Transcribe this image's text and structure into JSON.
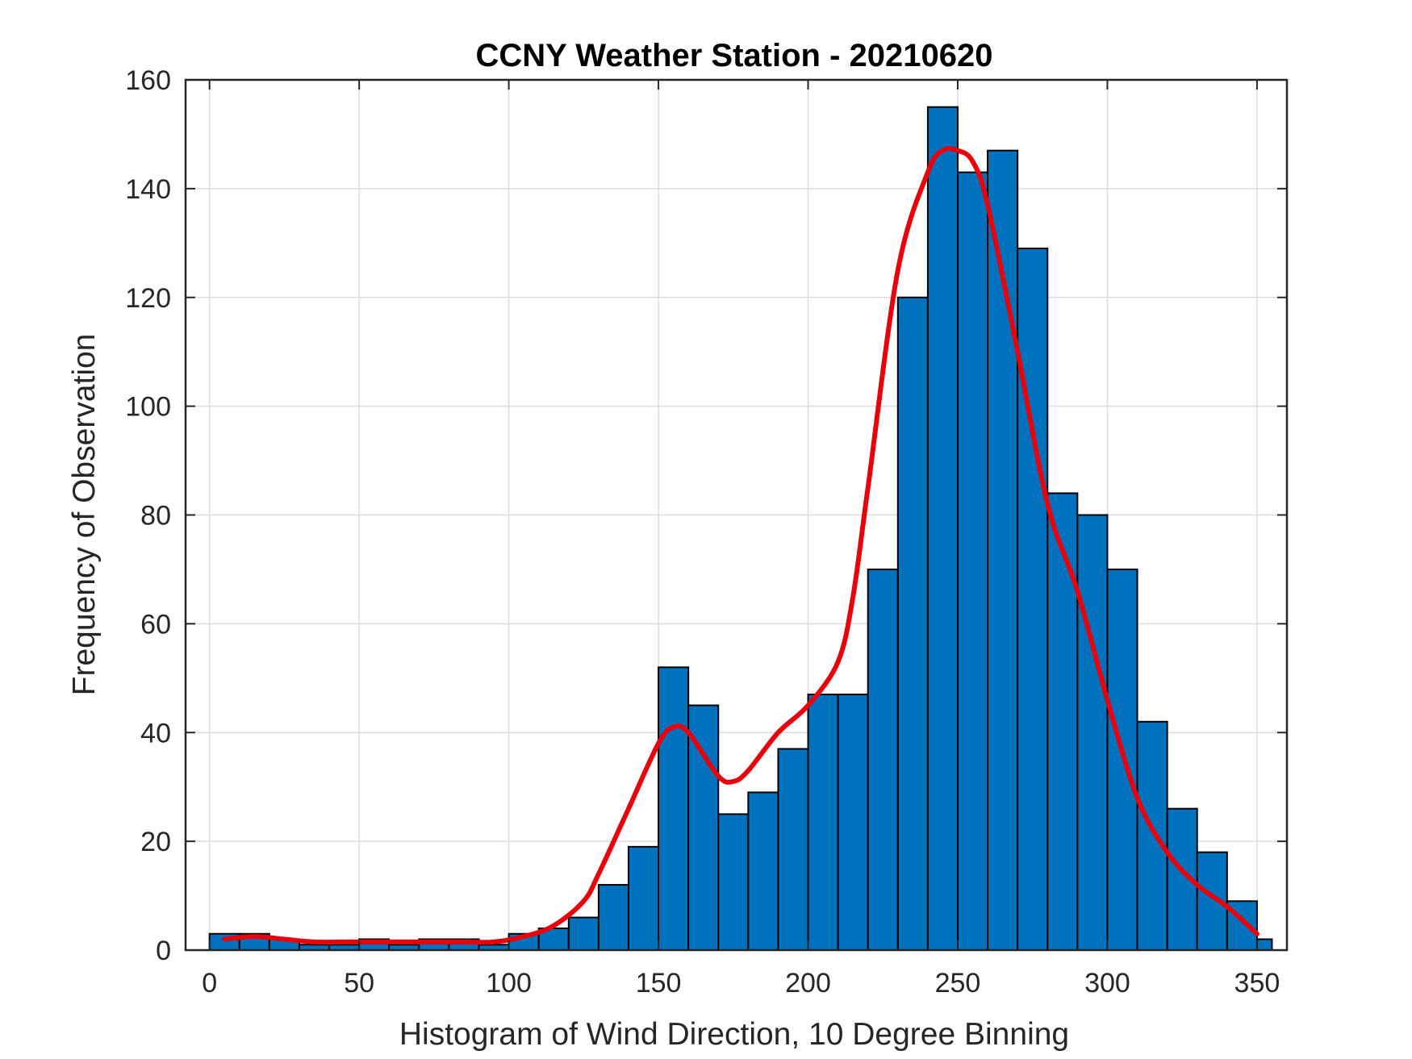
{
  "chart_data": {
    "type": "bar",
    "title": "CCNY Weather Station - 20210620",
    "xlabel": "Histogram of Wind Direction, 10 Degree Binning",
    "ylabel": "Frequency of Observation",
    "xlim": [
      -8,
      360
    ],
    "ylim": [
      0,
      160
    ],
    "xticks": [
      0,
      50,
      100,
      150,
      200,
      250,
      300,
      350
    ],
    "yticks": [
      0,
      20,
      40,
      60,
      80,
      100,
      120,
      140,
      160
    ],
    "grid": true,
    "bin_width": 10,
    "bin_edges": [
      0,
      10,
      20,
      30,
      40,
      50,
      60,
      70,
      80,
      90,
      100,
      110,
      120,
      130,
      140,
      150,
      160,
      170,
      180,
      190,
      200,
      210,
      220,
      230,
      240,
      250,
      260,
      270,
      280,
      290,
      300,
      310,
      320,
      330,
      340,
      350,
      355
    ],
    "values": [
      3,
      3,
      2,
      1,
      1,
      2,
      1,
      2,
      2,
      1,
      3,
      4,
      6,
      12,
      19,
      52,
      45,
      25,
      29,
      37,
      47,
      47,
      70,
      120,
      155,
      143,
      147,
      129,
      84,
      80,
      70,
      42,
      26,
      18,
      9,
      2
    ],
    "fit_curve": {
      "x": [
        5,
        15,
        25,
        35,
        45,
        55,
        65,
        75,
        85,
        95,
        105,
        115,
        125,
        130,
        140,
        150,
        155,
        160,
        170,
        175,
        180,
        190,
        200,
        210,
        215,
        220,
        230,
        240,
        245,
        250,
        255,
        260,
        270,
        280,
        290,
        300,
        310,
        320,
        330,
        340,
        350
      ],
      "y": [
        2,
        2.5,
        2,
        1.5,
        1.5,
        1.5,
        1.5,
        1.5,
        1.5,
        1.5,
        2.5,
        4.5,
        9,
        14,
        26,
        38,
        41,
        40,
        32,
        31,
        33,
        40,
        45,
        53,
        65,
        85,
        125,
        143,
        147,
        147,
        145,
        137,
        110,
        82,
        66,
        46,
        28,
        18,
        12,
        8,
        3
      ]
    },
    "colors": {
      "bar": "#0072BD",
      "fit": "#E8000B"
    }
  }
}
